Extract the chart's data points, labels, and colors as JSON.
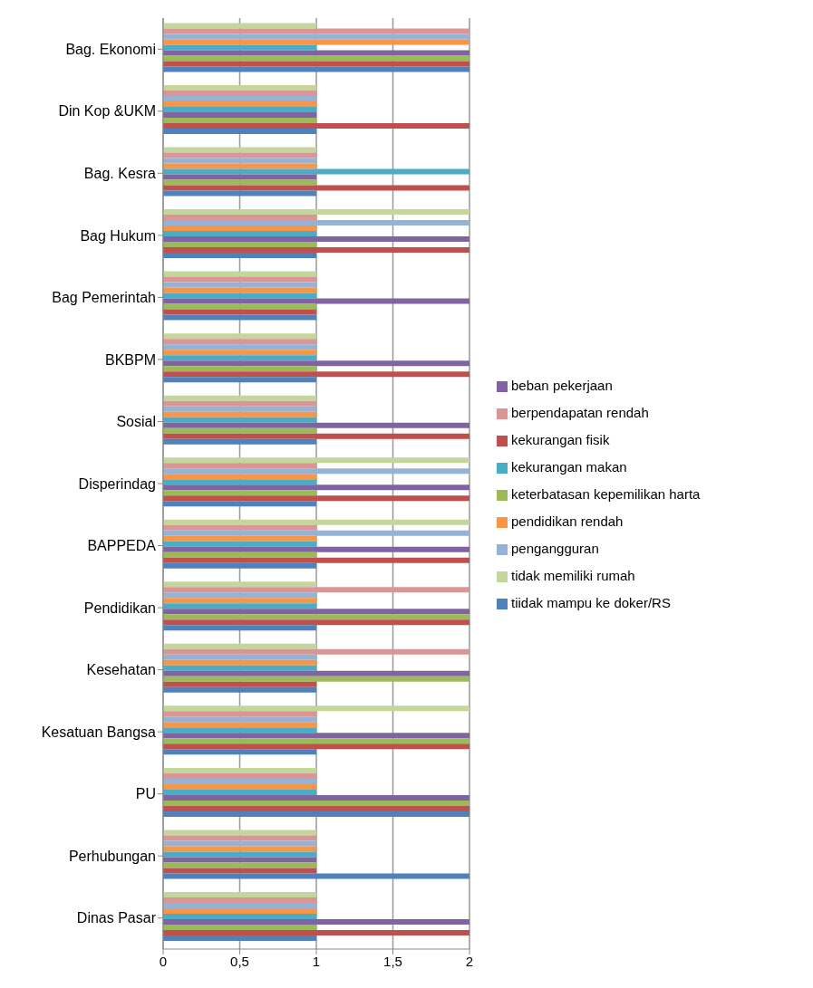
{
  "chart_data": {
    "type": "bar",
    "orientation": "horizontal",
    "categories": [
      "Bag. Ekonomi",
      "Din Kop &UKM",
      "Bag.  Kesra",
      "Bag Hukum",
      "Bag Pemerintah",
      "BKBPM",
      "Sosial",
      "Disperindag",
      "BAPPEDA",
      "Pendidikan",
      "Kesehatan",
      "Kesatuan Bangsa",
      "PU",
      "Perhubungan",
      "Dinas Pasar"
    ],
    "series": [
      {
        "name": "tidak memiliki rumah",
        "color": "#c3d69b",
        "values": [
          1,
          1,
          1,
          2,
          1,
          1,
          1,
          2,
          2,
          1,
          1,
          2,
          1,
          1,
          1
        ]
      },
      {
        "name": "berpendapatan rendah",
        "color": "#d99694",
        "values": [
          2,
          1,
          1,
          1,
          1,
          1,
          1,
          1,
          1,
          2,
          2,
          1,
          1,
          1,
          1
        ]
      },
      {
        "name": "pengangguran",
        "color": "#95b3d7",
        "values": [
          2,
          1,
          1,
          2,
          1,
          1,
          1,
          2,
          2,
          1,
          1,
          1,
          1,
          1,
          1
        ]
      },
      {
        "name": "pendidikan rendah",
        "color": "#f79646",
        "values": [
          2,
          1,
          1,
          1,
          1,
          1,
          1,
          1,
          1,
          1,
          1,
          1,
          1,
          1,
          1
        ]
      },
      {
        "name": "kekurangan makan",
        "color": "#4bacc6",
        "values": [
          1,
          1,
          2,
          1,
          1,
          1,
          1,
          1,
          1,
          1,
          1,
          1,
          1,
          1,
          1
        ]
      },
      {
        "name": "beban pekerjaan",
        "color": "#8064a2",
        "values": [
          2,
          1,
          1,
          2,
          2,
          2,
          2,
          2,
          2,
          2,
          2,
          2,
          2,
          1,
          2
        ]
      },
      {
        "name": "keterbatasan kepemilikan harta",
        "color": "#9bbb59",
        "values": [
          2,
          1,
          1,
          1,
          1,
          1,
          1,
          1,
          1,
          2,
          2,
          2,
          2,
          1,
          1
        ]
      },
      {
        "name": "kekurangan fisik",
        "color": "#c0504d",
        "values": [
          2,
          2,
          2,
          2,
          1,
          2,
          2,
          2,
          2,
          2,
          1,
          2,
          2,
          1,
          2
        ]
      },
      {
        "name": "tiidak mampu ke doker/RS",
        "color": "#4f81bd",
        "values": [
          2,
          1,
          1,
          1,
          1,
          1,
          1,
          1,
          1,
          1,
          1,
          1,
          2,
          2,
          1
        ]
      }
    ],
    "xlim": [
      0,
      2
    ],
    "xticks": [
      0,
      {
        "value": 0.5,
        "label": "0,5"
      },
      1,
      {
        "value": 1.5,
        "label": "1,5"
      },
      2
    ],
    "grid": "x",
    "legend": "right"
  }
}
